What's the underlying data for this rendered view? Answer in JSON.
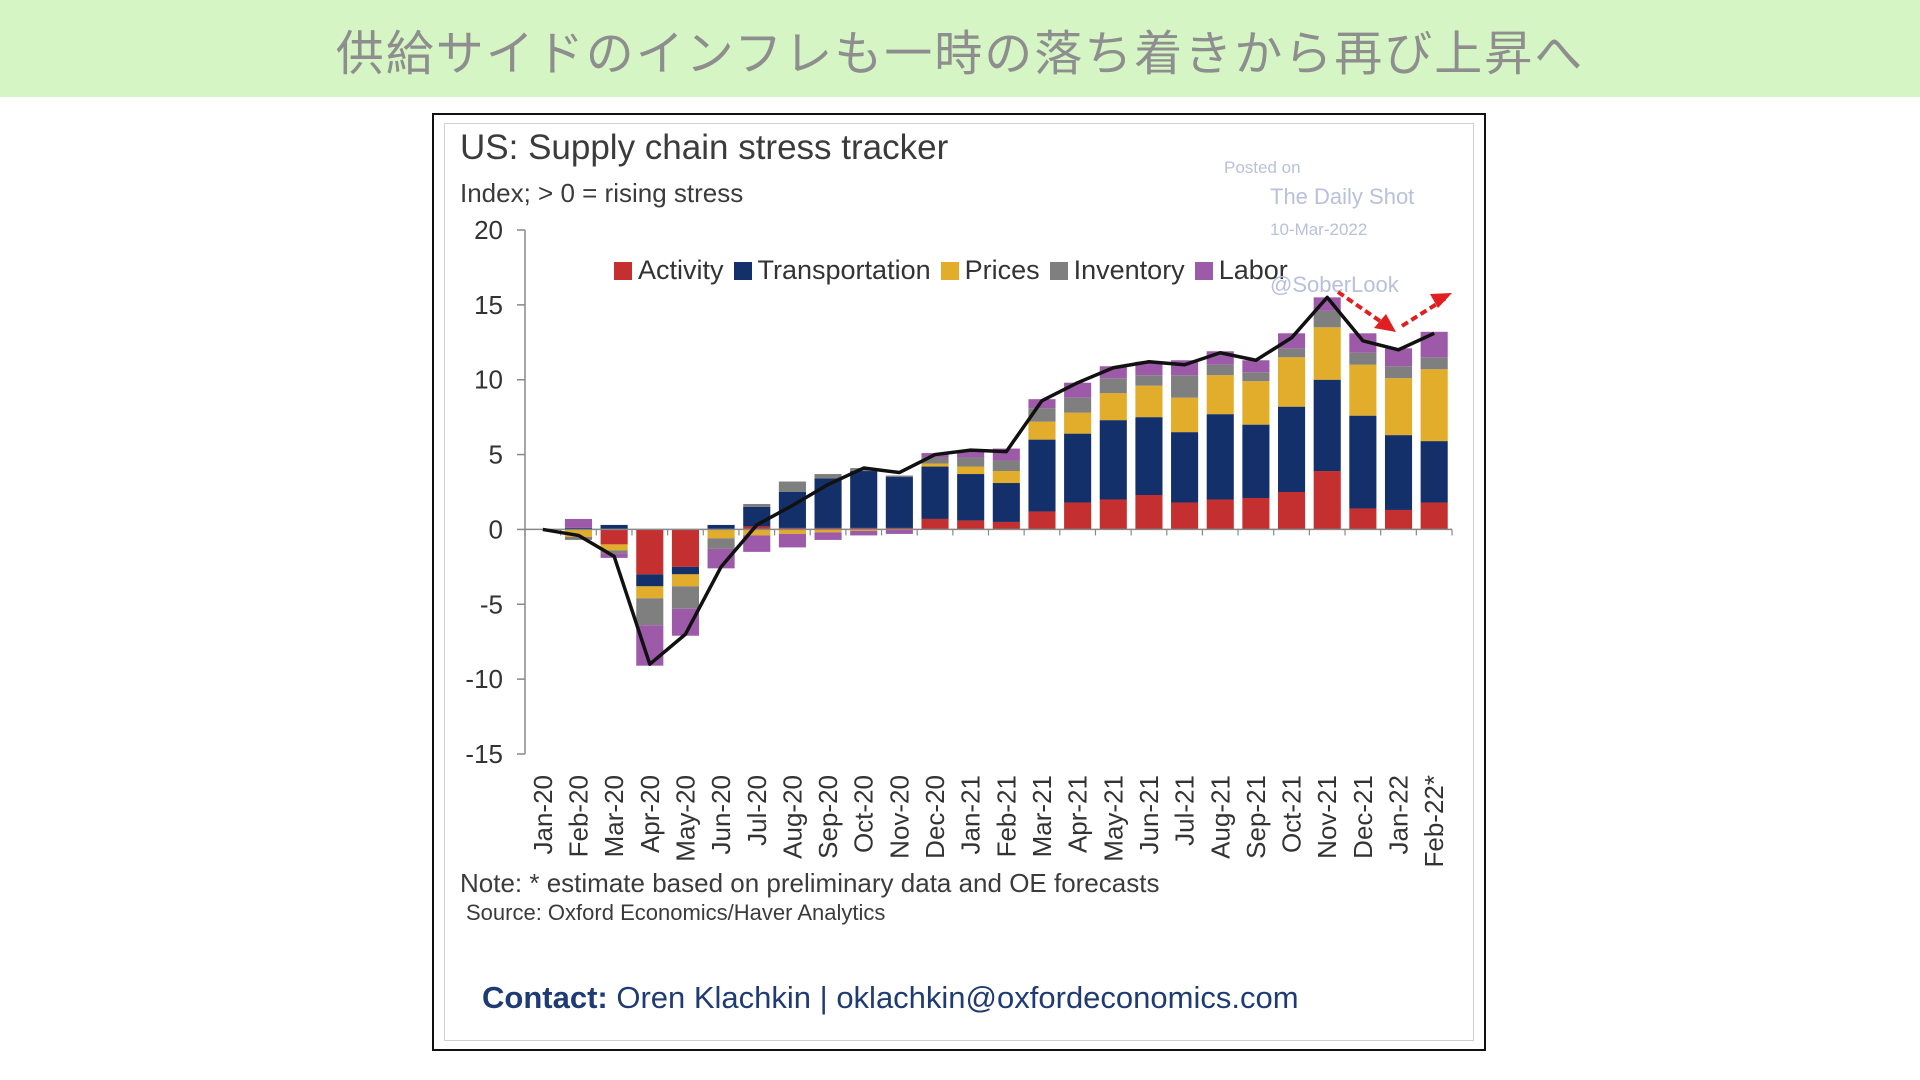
{
  "banner": {
    "title": "供給サイドのインフレも一時の落ち着きから再び上昇へ"
  },
  "watermark": {
    "posted_on": "Posted on",
    "name": "The Daily Shot",
    "date": "10-Mar-2022",
    "handle": "@SoberLook"
  },
  "note": "Note: * estimate based on preliminary data and OE forecasts",
  "source": "Source: Oxford Economics/Haver Analytics",
  "contact": {
    "label": "Contact:",
    "text": " Oren Klachkin | oklachkin@oxfordeconomics.com"
  },
  "colors": {
    "activity": "#c3302f",
    "transportation": "#14306b",
    "prices": "#e1ad2b",
    "inventory": "#7f7f7f",
    "labor": "#9c5aa8",
    "line": "#111111",
    "annotation_arrow": "#e02020"
  },
  "chart_data": {
    "type": "bar",
    "stacked": true,
    "title": "US: Supply chain stress tracker",
    "subtitle": "Index; > 0 = rising stress",
    "ylim": [
      -15,
      20
    ],
    "yticks": [
      20,
      15,
      10,
      5,
      0,
      -5,
      -10,
      -15
    ],
    "legend_position": "top",
    "categories": [
      "Jan-20",
      "Feb-20",
      "Mar-20",
      "Apr-20",
      "May-20",
      "Jun-20",
      "Jul-20",
      "Aug-20",
      "Sep-20",
      "Oct-20",
      "Nov-20",
      "Dec-20",
      "Jan-21",
      "Feb-21",
      "Mar-21",
      "Apr-21",
      "May-21",
      "Jun-21",
      "Jul-21",
      "Aug-21",
      "Sep-21",
      "Oct-21",
      "Nov-21",
      "Dec-21",
      "Jan-22",
      "Feb-22*"
    ],
    "series": [
      {
        "name": "Activity",
        "color_key": "activity",
        "values": [
          0,
          0,
          -1.0,
          -3.0,
          -2.5,
          0,
          0.2,
          0.1,
          0.1,
          0.1,
          0.1,
          0.7,
          0.6,
          0.5,
          1.2,
          1.8,
          2.0,
          2.3,
          1.8,
          2.0,
          2.1,
          2.5,
          3.9,
          1.4,
          1.3,
          1.8
        ]
      },
      {
        "name": "Transportation",
        "color_key": "transportation",
        "values": [
          0,
          0.1,
          0.3,
          -0.8,
          -0.5,
          0.3,
          1.3,
          2.4,
          3.3,
          3.8,
          3.4,
          3.5,
          3.1,
          2.6,
          4.8,
          4.6,
          5.3,
          5.2,
          4.7,
          5.7,
          4.9,
          5.7,
          6.1,
          6.2,
          5.0,
          4.1
        ]
      },
      {
        "name": "Prices",
        "color_key": "prices",
        "values": [
          0,
          -0.5,
          -0.4,
          -0.8,
          -0.8,
          -0.6,
          -0.4,
          -0.3,
          -0.2,
          -0.1,
          0,
          0.2,
          0.5,
          0.8,
          1.2,
          1.4,
          1.8,
          2.1,
          2.3,
          2.6,
          2.9,
          3.3,
          3.5,
          3.4,
          3.8,
          4.8
        ]
      },
      {
        "name": "Inventory",
        "color_key": "inventory",
        "values": [
          0,
          -0.2,
          -0.2,
          -1.8,
          -1.5,
          -0.7,
          0.2,
          0.7,
          0.3,
          0.2,
          0.1,
          0.4,
          0.6,
          0.7,
          0.9,
          1.0,
          1.0,
          0.7,
          1.5,
          0.7,
          0.6,
          0.6,
          1.1,
          0.8,
          0.8,
          0.8
        ]
      },
      {
        "name": "Labor",
        "color_key": "labor",
        "values": [
          0,
          0.6,
          -0.3,
          -2.7,
          -1.8,
          -1.3,
          -1.1,
          -0.9,
          -0.5,
          -0.3,
          -0.3,
          0.3,
          0.4,
          0.8,
          0.6,
          1.0,
          0.8,
          0.9,
          1.0,
          0.9,
          0.8,
          1.0,
          0.9,
          1.3,
          1.2,
          1.7
        ]
      }
    ],
    "total_line": {
      "values": [
        0,
        -0.4,
        -1.8,
        -9.0,
        -7.0,
        -2.5,
        0.3,
        1.6,
        3.0,
        4.1,
        3.8,
        5.0,
        5.3,
        5.2,
        8.6,
        9.8,
        10.8,
        11.2,
        11.0,
        11.8,
        11.3,
        12.8,
        15.5,
        12.6,
        12.0,
        13.1
      ]
    }
  }
}
